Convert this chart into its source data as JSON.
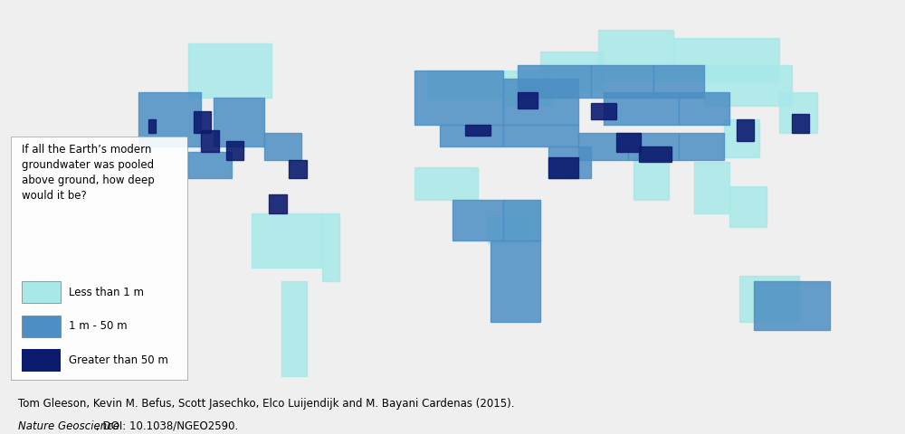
{
  "citation_line1": "Tom Gleeson, Kevin M. Befus, Scott Jasechko, Elco Luijendijk and M. Bayani Cardenas (2015).",
  "citation_line2_italic": "Nature Geoscience",
  "citation_line2_regular": ", DOI: 10.1038/NGEO2590.",
  "legend_title": "If all the Earth’s modern\ngroundwater was pooled\nabove ground, how deep\nwould it be?",
  "legend_items": [
    {
      "label": "Less than 1 m",
      "color": "#a8e8e8"
    },
    {
      "label": "1 m - 50 m",
      "color": "#4d8fc4"
    },
    {
      "label": "Greater than 50 m",
      "color": "#0d1b6e"
    }
  ],
  "figure_bg": "#efefef",
  "map_bg": "#cccccc",
  "ocean_color": "#c8c8c8",
  "land_color": "#ffffff",
  "border_color": "#000000",
  "border_lw": 0.3,
  "legend_fontsize": 8.5,
  "legend_title_fontsize": 8.5,
  "citation_fontsize": 8.5,
  "map_extent": [
    -180,
    180,
    -58,
    84
  ],
  "colors": {
    "lt1": "#a8e8e8",
    "m50": "#4d8fc4",
    "gt50": "#0d1b6e"
  },
  "regions_lt1": [
    [
      [
        -80,
        -15
      ],
      [
        -80,
        5
      ],
      [
        -52,
        5
      ],
      [
        -52,
        -15
      ]
    ],
    [
      [
        14,
        -6
      ],
      [
        14,
        4
      ],
      [
        30,
        4
      ],
      [
        30,
        -6
      ]
    ],
    [
      [
        114,
        -35
      ],
      [
        114,
        -18
      ],
      [
        138,
        -18
      ],
      [
        138,
        -35
      ]
    ],
    [
      [
        -105,
        48
      ],
      [
        -105,
        68
      ],
      [
        -72,
        68
      ],
      [
        -72,
        48
      ]
    ],
    [
      [
        58,
        54
      ],
      [
        58,
        73
      ],
      [
        88,
        73
      ],
      [
        88,
        54
      ]
    ],
    [
      [
        88,
        54
      ],
      [
        88,
        70
      ],
      [
        130,
        70
      ],
      [
        130,
        54
      ]
    ],
    [
      [
        108,
        26
      ],
      [
        108,
        40
      ],
      [
        122,
        40
      ],
      [
        122,
        26
      ]
    ],
    [
      [
        72,
        10
      ],
      [
        72,
        28
      ],
      [
        86,
        28
      ],
      [
        86,
        10
      ]
    ],
    [
      [
        96,
        5
      ],
      [
        96,
        24
      ],
      [
        110,
        24
      ],
      [
        110,
        5
      ]
    ],
    [
      [
        -68,
        -55
      ],
      [
        -68,
        -20
      ],
      [
        -58,
        -20
      ],
      [
        -58,
        -55
      ]
    ],
    [
      [
        -52,
        -20
      ],
      [
        -52,
        5
      ],
      [
        -45,
        5
      ],
      [
        -45,
        -20
      ]
    ],
    [
      [
        20,
        -5
      ],
      [
        20,
        10
      ],
      [
        35,
        10
      ],
      [
        35,
        -5
      ]
    ],
    [
      [
        100,
        45
      ],
      [
        100,
        60
      ],
      [
        135,
        60
      ],
      [
        135,
        45
      ]
    ],
    [
      [
        35,
        50
      ],
      [
        35,
        65
      ],
      [
        60,
        65
      ],
      [
        60,
        50
      ]
    ],
    [
      [
        -10,
        48
      ],
      [
        -10,
        58
      ],
      [
        5,
        58
      ],
      [
        5,
        48
      ]
    ],
    [
      [
        5,
        48
      ],
      [
        5,
        58
      ],
      [
        20,
        58
      ],
      [
        20,
        48
      ]
    ],
    [
      [
        20,
        45
      ],
      [
        20,
        58
      ],
      [
        40,
        58
      ],
      [
        40,
        45
      ]
    ],
    [
      [
        -15,
        10
      ],
      [
        -15,
        22
      ],
      [
        10,
        22
      ],
      [
        10,
        10
      ]
    ],
    [
      [
        110,
        0
      ],
      [
        110,
        15
      ],
      [
        125,
        15
      ],
      [
        125,
        0
      ]
    ],
    [
      [
        130,
        35
      ],
      [
        130,
        50
      ],
      [
        145,
        50
      ],
      [
        145,
        35
      ]
    ]
  ],
  "regions_m50": [
    [
      [
        -125,
        30
      ],
      [
        -125,
        50
      ],
      [
        -100,
        50
      ],
      [
        -100,
        30
      ]
    ],
    [
      [
        -95,
        30
      ],
      [
        -95,
        48
      ],
      [
        -75,
        48
      ],
      [
        -75,
        30
      ]
    ],
    [
      [
        -75,
        25
      ],
      [
        -75,
        35
      ],
      [
        -60,
        35
      ],
      [
        -60,
        25
      ]
    ],
    [
      [
        -15,
        38
      ],
      [
        -15,
        58
      ],
      [
        20,
        58
      ],
      [
        20,
        38
      ]
    ],
    [
      [
        20,
        38
      ],
      [
        20,
        55
      ],
      [
        50,
        55
      ],
      [
        50,
        38
      ]
    ],
    [
      [
        -5,
        30
      ],
      [
        -5,
        38
      ],
      [
        20,
        38
      ],
      [
        20,
        30
      ]
    ],
    [
      [
        20,
        30
      ],
      [
        20,
        38
      ],
      [
        50,
        38
      ],
      [
        50,
        30
      ]
    ],
    [
      [
        50,
        25
      ],
      [
        50,
        35
      ],
      [
        70,
        35
      ],
      [
        70,
        25
      ]
    ],
    [
      [
        70,
        25
      ],
      [
        70,
        35
      ],
      [
        90,
        35
      ],
      [
        90,
        25
      ]
    ],
    [
      [
        90,
        25
      ],
      [
        90,
        35
      ],
      [
        108,
        35
      ],
      [
        108,
        25
      ]
    ],
    [
      [
        26,
        48
      ],
      [
        26,
        60
      ],
      [
        55,
        60
      ],
      [
        55,
        48
      ]
    ],
    [
      [
        55,
        48
      ],
      [
        55,
        60
      ],
      [
        80,
        60
      ],
      [
        80,
        48
      ]
    ],
    [
      [
        80,
        48
      ],
      [
        80,
        60
      ],
      [
        100,
        60
      ],
      [
        100,
        48
      ]
    ],
    [
      [
        0,
        -5
      ],
      [
        0,
        10
      ],
      [
        20,
        10
      ],
      [
        20,
        -5
      ]
    ],
    [
      [
        20,
        -5
      ],
      [
        20,
        10
      ],
      [
        35,
        10
      ],
      [
        35,
        -5
      ]
    ],
    [
      [
        15,
        -35
      ],
      [
        15,
        -5
      ],
      [
        35,
        -5
      ],
      [
        35,
        -35
      ]
    ],
    [
      [
        120,
        -38
      ],
      [
        120,
        -20
      ],
      [
        150,
        -20
      ],
      [
        150,
        -38
      ]
    ],
    [
      [
        -105,
        18
      ],
      [
        -105,
        28
      ],
      [
        -88,
        28
      ],
      [
        -88,
        18
      ]
    ],
    [
      [
        38,
        18
      ],
      [
        38,
        30
      ],
      [
        55,
        30
      ],
      [
        55,
        18
      ]
    ],
    [
      [
        60,
        38
      ],
      [
        60,
        50
      ],
      [
        90,
        50
      ],
      [
        90,
        38
      ]
    ],
    [
      [
        90,
        38
      ],
      [
        90,
        50
      ],
      [
        110,
        50
      ],
      [
        110,
        38
      ]
    ]
  ],
  "regions_gt50": [
    [
      [
        -121,
        35
      ],
      [
        -121,
        40
      ],
      [
        -118,
        40
      ],
      [
        -118,
        35
      ]
    ],
    [
      [
        -103,
        35
      ],
      [
        -103,
        43
      ],
      [
        -96,
        43
      ],
      [
        -96,
        35
      ]
    ],
    [
      [
        -90,
        25
      ],
      [
        -90,
        32
      ],
      [
        -83,
        32
      ],
      [
        -83,
        25
      ]
    ],
    [
      [
        38,
        18
      ],
      [
        38,
        26
      ],
      [
        50,
        26
      ],
      [
        50,
        18
      ]
    ],
    [
      [
        113,
        32
      ],
      [
        113,
        40
      ],
      [
        120,
        40
      ],
      [
        120,
        32
      ]
    ],
    [
      [
        74,
        24
      ],
      [
        74,
        30
      ],
      [
        87,
        30
      ],
      [
        87,
        24
      ]
    ],
    [
      [
        -65,
        18
      ],
      [
        -65,
        25
      ],
      [
        -58,
        25
      ],
      [
        -58,
        18
      ]
    ],
    [
      [
        65,
        28
      ],
      [
        65,
        35
      ],
      [
        75,
        35
      ],
      [
        75,
        28
      ]
    ],
    [
      [
        135,
        35
      ],
      [
        135,
        42
      ],
      [
        142,
        42
      ],
      [
        142,
        35
      ]
    ],
    [
      [
        -100,
        28
      ],
      [
        -100,
        36
      ],
      [
        -93,
        36
      ],
      [
        -93,
        28
      ]
    ],
    [
      [
        -73,
        5
      ],
      [
        -73,
        12
      ],
      [
        -66,
        12
      ],
      [
        -66,
        5
      ]
    ],
    [
      [
        5,
        34
      ],
      [
        5,
        38
      ],
      [
        15,
        38
      ],
      [
        15,
        34
      ]
    ],
    [
      [
        26,
        44
      ],
      [
        26,
        50
      ],
      [
        34,
        50
      ],
      [
        34,
        44
      ]
    ],
    [
      [
        55,
        40
      ],
      [
        55,
        46
      ],
      [
        65,
        46
      ],
      [
        65,
        40
      ]
    ]
  ]
}
